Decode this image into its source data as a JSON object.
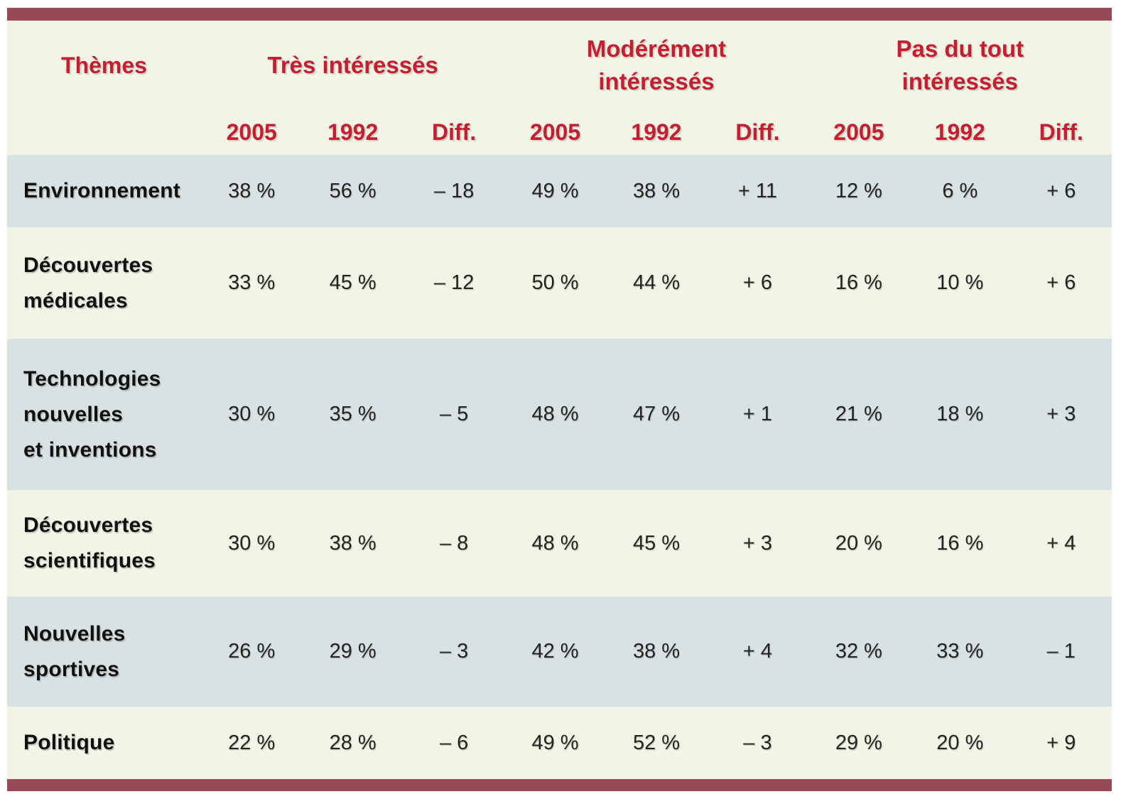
{
  "colors": {
    "rule_bar": "#974a55",
    "header_text_red": "#c41e30",
    "background_cream": "#f2f4e5",
    "row_blue_gray": "#d8e2e2",
    "theme_text": "#101010",
    "value_text": "#232323"
  },
  "table": {
    "theme_header": "Thèmes",
    "groups": [
      {
        "label": "Très intéressés"
      },
      {
        "label": "Modérément\nintéressés"
      },
      {
        "label": "Pas du tout\nintéressés"
      }
    ],
    "year_headers": [
      "2005",
      "1992",
      "Diff.",
      "2005",
      "1992",
      "Diff.",
      "2005",
      "1992",
      "Diff."
    ],
    "rows": [
      {
        "theme": "Environnement",
        "values": [
          "38 %",
          "56 %",
          "– 18",
          "49 %",
          "38 %",
          "+ 11",
          "12 %",
          "6 %",
          "+ 6"
        ]
      },
      {
        "theme": "Découvertes\nmédicales",
        "values": [
          "33 %",
          "45 %",
          "– 12",
          "50 %",
          "44 %",
          "+ 6",
          "16 %",
          "10 %",
          "+ 6"
        ]
      },
      {
        "theme": "Technologies\nnouvelles\net inventions",
        "values": [
          "30 %",
          "35 %",
          "– 5",
          "48 %",
          "47 %",
          "+ 1",
          "21 %",
          "18 %",
          "+ 3"
        ]
      },
      {
        "theme": "Découvertes\nscientifiques",
        "values": [
          "30 %",
          "38 %",
          "– 8",
          "48 %",
          "45 %",
          "+ 3",
          "20 %",
          "16 %",
          "+ 4"
        ]
      },
      {
        "theme": "Nouvelles\nsportives",
        "values": [
          "26 %",
          "29 %",
          "– 3",
          "42 %",
          "38 %",
          "+ 4",
          "32 %",
          "33 %",
          "– 1"
        ]
      },
      {
        "theme": "Politique",
        "values": [
          "22 %",
          "28 %",
          "– 6",
          "49 %",
          "52 %",
          "– 3",
          "29 %",
          "20 %",
          "+ 9"
        ]
      }
    ]
  },
  "chart_data": {
    "type": "table",
    "row_header": "Thèmes",
    "column_groups": [
      "Très intéressés",
      "Modérément intéressés",
      "Pas du tout intéressés"
    ],
    "columns_per_group": [
      "2005",
      "1992",
      "Diff."
    ],
    "categories": [
      "Environnement",
      "Découvertes médicales",
      "Technologies nouvelles et inventions",
      "Découvertes scientifiques",
      "Nouvelles sportives",
      "Politique"
    ],
    "series": [
      {
        "name": "Très intéressés 2005 (%)",
        "values": [
          38,
          33,
          30,
          30,
          26,
          22
        ]
      },
      {
        "name": "Très intéressés 1992 (%)",
        "values": [
          56,
          45,
          35,
          38,
          29,
          28
        ]
      },
      {
        "name": "Très intéressés Diff.",
        "values": [
          -18,
          -12,
          -5,
          -8,
          -3,
          -6
        ]
      },
      {
        "name": "Modérément intéressés 2005 (%)",
        "values": [
          49,
          50,
          48,
          48,
          42,
          49
        ]
      },
      {
        "name": "Modérément intéressés 1992 (%)",
        "values": [
          38,
          44,
          47,
          45,
          38,
          52
        ]
      },
      {
        "name": "Modérément intéressés Diff.",
        "values": [
          11,
          6,
          1,
          3,
          4,
          -3
        ]
      },
      {
        "name": "Pas du tout intéressés 2005 (%)",
        "values": [
          12,
          16,
          21,
          20,
          32,
          29
        ]
      },
      {
        "name": "Pas du tout intéressés 1992 (%)",
        "values": [
          6,
          10,
          18,
          16,
          33,
          20
        ]
      },
      {
        "name": "Pas du tout intéressés Diff.",
        "values": [
          6,
          6,
          3,
          4,
          -1,
          9
        ]
      }
    ]
  }
}
